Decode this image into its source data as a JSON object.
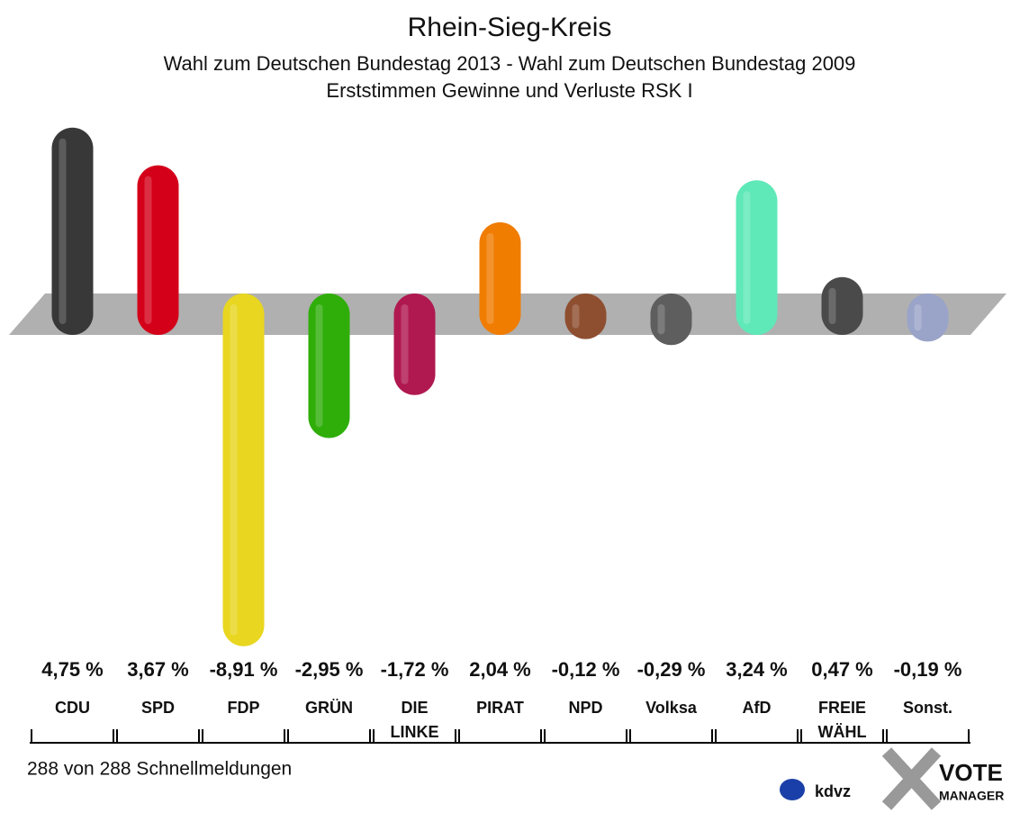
{
  "chart_data": {
    "type": "bar",
    "title": "Rhein-Sieg-Kreis",
    "subtitle": [
      "Wahl zum Deutschen Bundestag 2013 - Wahl zum Deutschen Bundestag 2009",
      "Erststimmen Gewinne und Verluste RSK I"
    ],
    "categories": [
      [
        "CDU"
      ],
      [
        "SPD"
      ],
      [
        "FDP"
      ],
      [
        "GRÜN"
      ],
      [
        "DIE",
        "LINKE"
      ],
      [
        "PIRAT"
      ],
      [
        "NPD"
      ],
      [
        "Volksa"
      ],
      [
        "AfD"
      ],
      [
        "FREIE",
        "WÄHL"
      ],
      [
        "Sonst."
      ]
    ],
    "values": [
      4.75,
      3.67,
      -8.91,
      -2.95,
      -1.72,
      2.04,
      -0.12,
      -0.29,
      3.24,
      0.47,
      -0.19
    ],
    "value_labels": [
      "4,75 %",
      "3,67 %",
      "-8,91 %",
      "-2,95 %",
      "-1,72 %",
      "2,04 %",
      "-0,12 %",
      "-0,29 %",
      "3,24 %",
      "0,47 %",
      "-0,19 %"
    ],
    "colors": [
      "#383838",
      "#d4001a",
      "#e8d620",
      "#2fae0a",
      "#b01850",
      "#f07c00",
      "#8e4f30",
      "#5e5e5e",
      "#5fe8b8",
      "#4a4a4a",
      "#9aa4c8"
    ],
    "footnote": "288 von 288 Schnellmeldungen",
    "logos": [
      "kdvz",
      "VOTE",
      "MANAGER"
    ]
  }
}
